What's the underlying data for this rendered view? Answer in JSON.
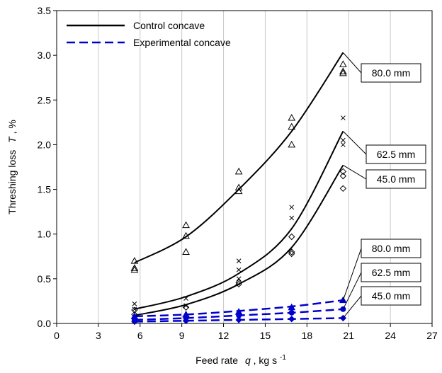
{
  "chart_data": {
    "type": "scatter",
    "xlabel": {
      "main": "Feed rate",
      "var": "q",
      "unit": ", kg s",
      "sup": "-1"
    },
    "ylabel": {
      "main": "Threshing loss",
      "var": "T",
      "unit": ", %"
    },
    "xlim": [
      0,
      27
    ],
    "ylim": [
      0,
      3.5
    ],
    "x_ticks": [
      "0",
      "3",
      "6",
      "9",
      "12",
      "15",
      "18",
      "21",
      "24",
      "27"
    ],
    "y_ticks": [
      "0.0",
      "0.5",
      "1.0",
      "1.5",
      "2.0",
      "2.5",
      "3.0",
      "3.5"
    ],
    "grid": "vertical",
    "legend": {
      "placement": "top-left",
      "entries": [
        {
          "label": "Control concave",
          "style": "solid",
          "color": "#000000"
        },
        {
          "label": "Experimental concave",
          "style": "dashed",
          "color": "#0000cc"
        }
      ]
    },
    "x_values": [
      5.6,
      9.3,
      13.1,
      16.9,
      20.6
    ],
    "series": [
      {
        "group": "control",
        "label": "80.0 mm",
        "marker": "triangle",
        "color": "#000000",
        "curve": [
          0.68,
          0.97,
          1.5,
          2.15,
          3.03
        ],
        "points": [
          [
            5.6,
            0.7
          ],
          [
            5.6,
            0.62
          ],
          [
            5.6,
            0.6
          ],
          [
            9.3,
            1.1
          ],
          [
            9.3,
            0.98
          ],
          [
            9.3,
            0.8
          ],
          [
            13.1,
            1.7
          ],
          [
            13.1,
            1.52
          ],
          [
            13.1,
            1.48
          ],
          [
            16.9,
            2.3
          ],
          [
            16.9,
            2.2
          ],
          [
            16.9,
            2.0
          ],
          [
            20.6,
            2.9
          ],
          [
            20.6,
            2.82
          ],
          [
            20.6,
            2.8
          ]
        ]
      },
      {
        "group": "control",
        "label": "62.5 mm",
        "marker": "x",
        "color": "#000000",
        "curve": [
          0.16,
          0.3,
          0.56,
          1.06,
          2.15
        ],
        "points": [
          [
            5.6,
            0.22
          ],
          [
            5.6,
            0.16
          ],
          [
            9.3,
            0.28
          ],
          [
            9.3,
            0.2
          ],
          [
            13.1,
            0.7
          ],
          [
            13.1,
            0.6
          ],
          [
            13.1,
            0.5
          ],
          [
            16.9,
            1.3
          ],
          [
            16.9,
            1.18
          ],
          [
            20.6,
            2.3
          ],
          [
            20.6,
            2.05
          ],
          [
            20.6,
            2.0
          ]
        ]
      },
      {
        "group": "control",
        "label": "45.0 mm",
        "marker": "diamond",
        "color": "#000000",
        "curve": [
          0.09,
          0.21,
          0.44,
          0.85,
          1.77
        ],
        "points": [
          [
            5.6,
            0.15
          ],
          [
            5.6,
            0.1
          ],
          [
            9.3,
            0.18
          ],
          [
            13.1,
            0.46
          ],
          [
            13.1,
            0.44
          ],
          [
            16.9,
            0.97
          ],
          [
            16.9,
            0.8
          ],
          [
            16.9,
            0.78
          ],
          [
            20.6,
            1.7
          ],
          [
            20.6,
            1.65
          ],
          [
            20.6,
            1.51
          ]
        ]
      },
      {
        "group": "experimental",
        "label": "80.0 mm",
        "marker": "triangle-filled",
        "color": "#0000cc",
        "curve": [
          0.08,
          0.1,
          0.14,
          0.19,
          0.26
        ],
        "points": [
          [
            5.6,
            0.08
          ],
          [
            9.3,
            0.1
          ],
          [
            13.1,
            0.13
          ],
          [
            16.9,
            0.18
          ],
          [
            20.6,
            0.26
          ]
        ]
      },
      {
        "group": "experimental",
        "label": "62.5 mm",
        "marker": "circle-filled",
        "color": "#0000cc",
        "curve": [
          0.04,
          0.06,
          0.09,
          0.12,
          0.16
        ],
        "points": [
          [
            5.6,
            0.04
          ],
          [
            9.3,
            0.06
          ],
          [
            13.1,
            0.09
          ],
          [
            16.9,
            0.12
          ],
          [
            20.6,
            0.16
          ]
        ]
      },
      {
        "group": "experimental",
        "label": "45.0 mm",
        "marker": "diamond-filled",
        "color": "#0000cc",
        "curve": [
          0.02,
          0.03,
          0.04,
          0.05,
          0.06
        ],
        "points": [
          [
            5.6,
            0.02
          ],
          [
            9.3,
            0.03
          ],
          [
            13.1,
            0.04
          ],
          [
            16.9,
            0.05
          ],
          [
            20.6,
            0.06
          ]
        ]
      }
    ]
  }
}
